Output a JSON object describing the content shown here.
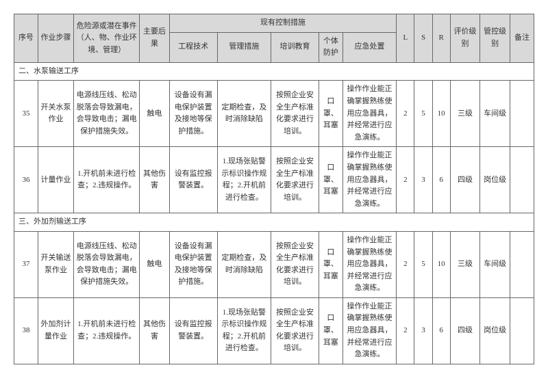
{
  "headers": {
    "seq": "序号",
    "step": "作业步骤",
    "hazard": "危险源或潜在事件（人、物、作业环境、管理）",
    "consequence": "主要后果",
    "controls": "现有控制措施",
    "eng": "工程技术",
    "mgmt": "管理措施",
    "train": "培训教育",
    "ppe": "个体防护",
    "emergency": "应急处置",
    "l": "L",
    "s": "S",
    "r": "R",
    "eval": "评价级别",
    "ctrl": "管控级别",
    "remark": "备注"
  },
  "sections": [
    {
      "title": "二、水泵输送工序"
    },
    {
      "title": "三、外加剂输送工序"
    }
  ],
  "rows": [
    {
      "seq": "35",
      "step": "开关水泵作业",
      "hazard": "电源线压线、松动脱落会导致漏电，会导致电击；漏电保护措施失效。",
      "consequence": "触电",
      "eng": "设备设有漏电保护装置及接地等保护措施。",
      "mgmt": "定期检查，及时消除缺陷",
      "train": "按照企业安全生产标准化要求进行培训。",
      "ppe": "口罩、耳塞",
      "emergency": "操作作业能正确掌握熟练使用应急器具，并经常进行应急演练。",
      "l": "2",
      "s": "5",
      "r": "10",
      "eval": "三级",
      "ctrl": "车间级",
      "remark": ""
    },
    {
      "seq": "36",
      "step": "计量作业",
      "hazard": "1.开机前未进行检查；2.违规操作。",
      "consequence": "其他伤害",
      "eng": "设有监控报警装置。",
      "mgmt": "1.现场张贴警示标识操作规程；2.开机前进行检查。",
      "train": "按照企业安全生产标准化要求进行培训。",
      "ppe": "口罩、耳塞",
      "emergency": "操作作业能正确掌握熟练使用应急器具，并经常进行应急演练。",
      "l": "2",
      "s": "3",
      "r": "6",
      "eval": "四级",
      "ctrl": "岗位级",
      "remark": ""
    },
    {
      "seq": "37",
      "step": "开关输送泵作业",
      "hazard": "电源线压线、松动脱落会导致漏电，会导致电击；漏电保护措施失效。",
      "consequence": "触电",
      "eng": "设备设有漏电保护装置及接地等保护措施。",
      "mgmt": "定期检查，及时消除缺陷",
      "train": "按照企业安全生产标准化要求进行培训。",
      "ppe": "口罩、耳塞",
      "emergency": "操作作业能正确掌握熟练使用应急器具，并经常进行应急演练。",
      "l": "2",
      "s": "5",
      "r": "10",
      "eval": "三级",
      "ctrl": "车间级",
      "remark": ""
    },
    {
      "seq": "38",
      "step": "外加剂计量作业",
      "hazard": "1.开机前未进行检查；2.违规操作。",
      "consequence": "其他伤害",
      "eng": "设有监控报警装置。",
      "mgmt": "1.现场张贴警示标识操作规程；2.开机前进行检查。",
      "train": "按照企业安全生产标准化要求进行培训。",
      "ppe": "口罩、耳塞",
      "emergency": "操作作业能正确掌握熟练使用应急器具，并经常进行应急演练。",
      "l": "2",
      "s": "3",
      "r": "6",
      "eval": "四级",
      "ctrl": "岗位级",
      "remark": ""
    }
  ]
}
